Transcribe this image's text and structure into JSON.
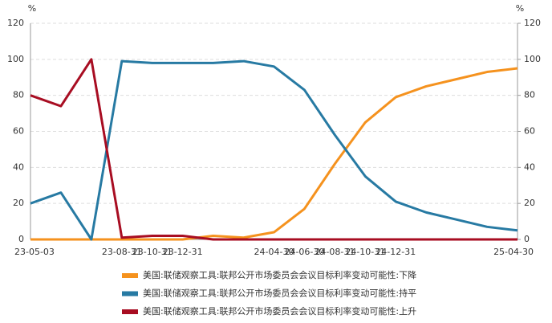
{
  "chart_data": {
    "type": "line",
    "y_unit": "%",
    "y2_unit": "%",
    "categories": [
      "23-05-03",
      null,
      null,
      "23-08-31",
      "23-10-31",
      "23-12-31",
      null,
      null,
      "24-04-30",
      "24-06-30",
      "24-08-31",
      "24-10-31",
      "24-12-31",
      null,
      null,
      null,
      "25-04-30"
    ],
    "series": [
      {
        "name": "美国:联储观察工具:联邦公开市场委员会会议目标利率变动可能性:下降",
        "color": "#f5921e",
        "values": [
          0,
          0,
          0,
          0,
          0,
          0,
          2,
          1,
          4,
          17,
          42,
          65,
          79,
          85,
          89,
          93,
          95
        ]
      },
      {
        "name": "美国:联储观察工具:联邦公开市场委员会会议目标利率变动可能性:持平",
        "color": "#277aa3",
        "values": [
          20,
          26,
          0,
          99,
          98,
          98,
          98,
          99,
          96,
          83,
          58,
          35,
          21,
          15,
          11,
          7,
          5
        ]
      },
      {
        "name": "美国:联储观察工具:联邦公开市场委员会会议目标利率变动可能性:上升",
        "color": "#a80d22",
        "values": [
          80,
          74,
          100,
          1,
          2,
          2,
          0,
          0,
          0,
          0,
          0,
          0,
          0,
          0,
          0,
          0,
          0
        ]
      }
    ],
    "ylim": [
      0,
      120
    ],
    "yticks": [
      0,
      20,
      40,
      60,
      80,
      100,
      120
    ],
    "y2lim": [
      0,
      120
    ],
    "y2ticks": [
      0,
      20,
      40,
      60,
      80,
      100,
      120
    ],
    "grid": true
  }
}
